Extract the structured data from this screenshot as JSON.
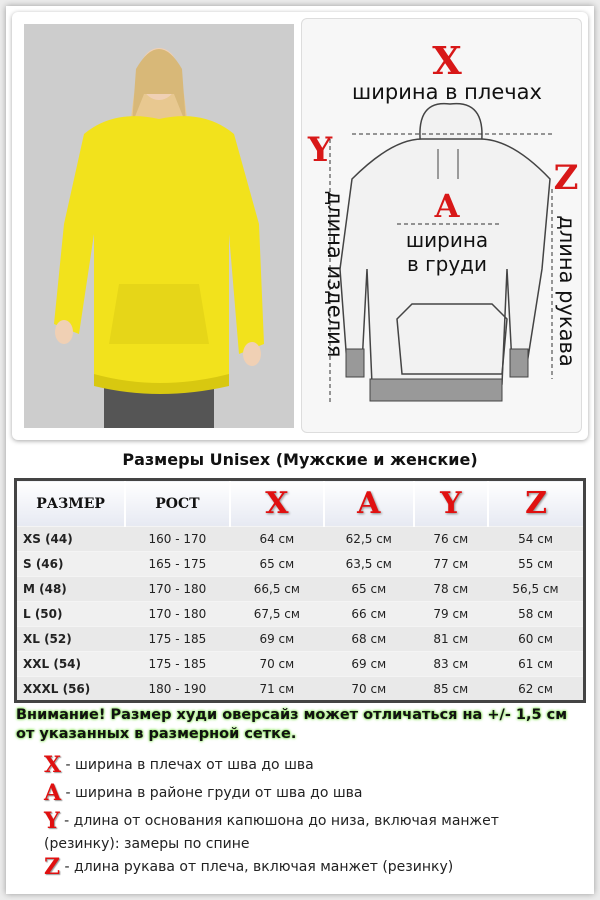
{
  "diagram": {
    "x_letter": "X",
    "x_label": "ширина в плечах",
    "y_letter": "Y",
    "y_label": "длина изделия",
    "z_letter": "Z",
    "z_label": "длина рукава",
    "a_letter": "A",
    "a_label_1": "ширина",
    "a_label_2": "в груди"
  },
  "title": "Размеры Unisex (Мужские и женские)",
  "table": {
    "headers": [
      "РАЗМЕР",
      "РОСТ",
      "X",
      "A",
      "Y",
      "Z"
    ],
    "rows": [
      [
        "XS (44)",
        "160 - 170",
        "64 см",
        "62,5 см",
        "76 см",
        "54 см"
      ],
      [
        "S (46)",
        "165 - 175",
        "65 см",
        "63,5 см",
        "77 см",
        "55 см"
      ],
      [
        "M (48)",
        "170 - 180",
        "66,5 см",
        "65 см",
        "78 см",
        "56,5 см"
      ],
      [
        "L (50)",
        "170 - 180",
        "67,5 см",
        "66 см",
        "79 см",
        "58 см"
      ],
      [
        "XL (52)",
        "175 - 185",
        "69 см",
        "68 см",
        "81 см",
        "60 см"
      ],
      [
        "XXL (54)",
        "175 - 185",
        "70 см",
        "69 см",
        "83 см",
        "61 см"
      ],
      [
        "XXXL (56)",
        "180 - 190",
        "71 см",
        "70 см",
        "85 см",
        "62 см"
      ]
    ]
  },
  "warning": "Внимание! Размер худи оверсайз может отличаться на +/- 1,5 см от указанных в размерной сетке.",
  "legend": [
    {
      "letter": "X",
      "text": " - ширина в плечах от шва до шва"
    },
    {
      "letter": "A",
      "text": " - ширина в районе груди от шва до шва"
    },
    {
      "letter": "Y",
      "text": " - длина от основания капюшона до низа, включая манжет (резинку): замеры по спине"
    },
    {
      "letter": "Z",
      "text": " - длина рукава от плеча, включая манжет (резинку)"
    }
  ],
  "colors": {
    "accent_red": "#e01010",
    "hoodie_yellow": "#f2e21c",
    "warning_glow": "#7de04a"
  }
}
